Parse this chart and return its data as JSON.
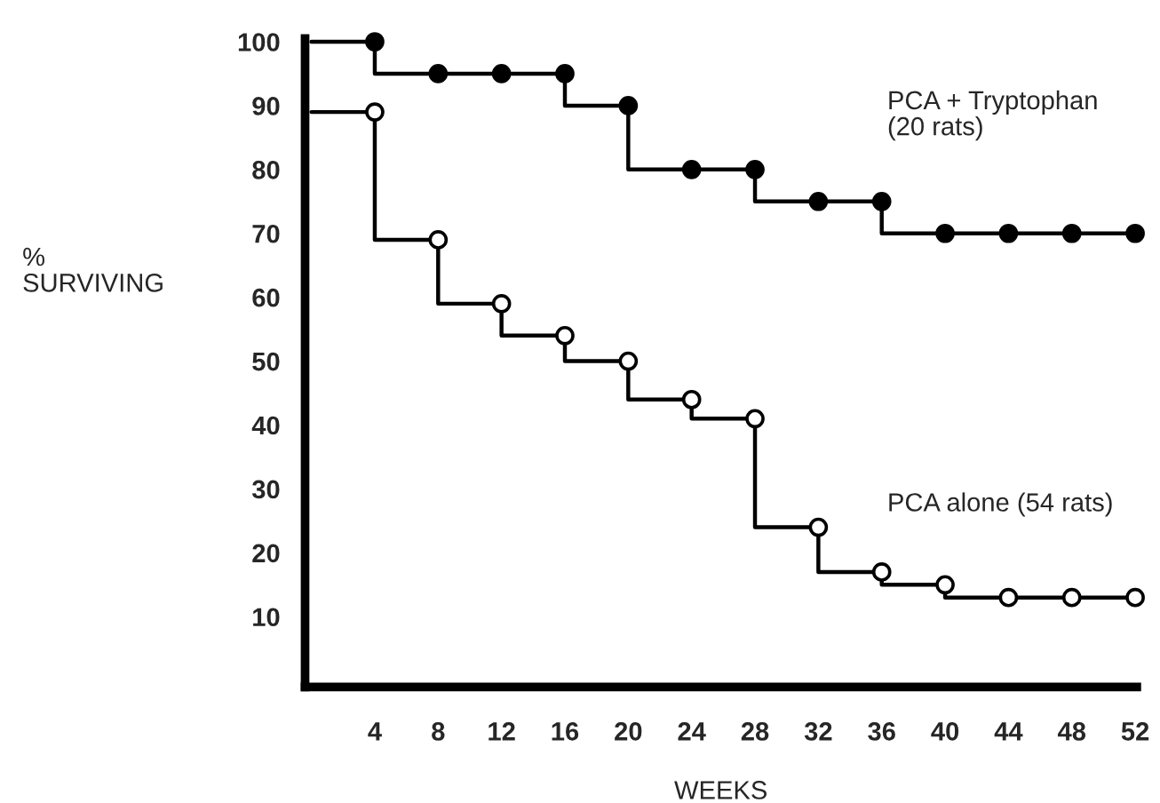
{
  "chart_data": {
    "type": "step",
    "xlabel": "WEEKS",
    "ylabel": "%\nSURVIVING",
    "x": [
      0,
      4,
      8,
      12,
      16,
      20,
      24,
      28,
      32,
      36,
      40,
      44,
      48,
      52
    ],
    "series": [
      {
        "name": "PCA + Tryptophan\n(20 rats)",
        "color": "#000000",
        "values": [
          100,
          100,
          95,
          95,
          95,
          90,
          80,
          80,
          75,
          75,
          70,
          70,
          70,
          70
        ]
      },
      {
        "name": "PCA alone (54 rats)",
        "color": "#000000",
        "values": [
          89,
          89,
          69,
          59,
          54,
          50,
          44,
          41,
          24,
          17,
          15,
          13,
          13,
          13
        ]
      }
    ],
    "xlim": [
      -0.4,
      52.1
    ],
    "ylim": [
      -1,
      100.5
    ],
    "xticks": [
      4,
      8,
      12,
      16,
      20,
      24,
      28,
      32,
      36,
      40,
      44,
      48,
      52
    ],
    "yticks": [
      10,
      20,
      30,
      40,
      50,
      60,
      70,
      80,
      90,
      100
    ],
    "marker": "circle",
    "line_style": "solid",
    "grid": false,
    "legend": false
  }
}
